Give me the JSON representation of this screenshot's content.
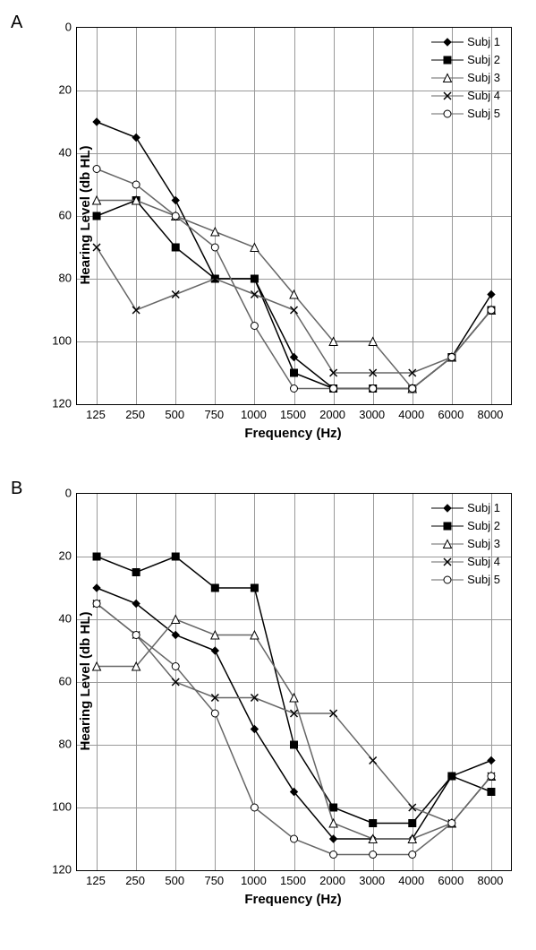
{
  "background_color": "#ffffff",
  "grid_color": "#999999",
  "axis_color": "#000000",
  "text_color": "#000000",
  "fonts": {
    "axis_label_fontsize": 15,
    "tick_fontsize": 13,
    "legend_fontsize": 13,
    "panel_label_fontsize": 20
  },
  "x": {
    "label": "Frequency (Hz)",
    "ticks": [
      "125",
      "250",
      "500",
      "750",
      "1000",
      "1500",
      "2000",
      "3000",
      "4000",
      "6000",
      "8000"
    ]
  },
  "y": {
    "label": "Hearing Level (db HL)",
    "min": 0,
    "max": 120,
    "step": 20,
    "inverted": true,
    "ticks": [
      0,
      20,
      40,
      60,
      80,
      100,
      120
    ]
  },
  "markers": {
    "subj1": {
      "shape": "diamond",
      "fill": "#000000",
      "stroke": "#000000",
      "size": 8,
      "line": "#000000"
    },
    "subj2": {
      "shape": "square",
      "fill": "#000000",
      "stroke": "#000000",
      "size": 8,
      "line": "#000000"
    },
    "subj3": {
      "shape": "triangle",
      "fill": "#ffffff",
      "stroke": "#000000",
      "size": 9,
      "line": "#666666"
    },
    "subj4": {
      "shape": "x",
      "fill": "none",
      "stroke": "#000000",
      "size": 8,
      "line": "#666666"
    },
    "subj5": {
      "shape": "circle",
      "fill": "#ffffff",
      "stroke": "#000000",
      "size": 8,
      "line": "#666666"
    }
  },
  "legend": {
    "items": [
      {
        "key": "subj1",
        "label": "Subj 1"
      },
      {
        "key": "subj2",
        "label": "Subj 2"
      },
      {
        "key": "subj3",
        "label": "Subj 3"
      },
      {
        "key": "subj4",
        "label": "Subj 4"
      },
      {
        "key": "subj5",
        "label": "Subj 5"
      }
    ]
  },
  "panels": [
    {
      "id": "A",
      "label": "A",
      "series": {
        "subj1": [
          30,
          35,
          55,
          80,
          80,
          105,
          115,
          115,
          115,
          105,
          85
        ],
        "subj2": [
          60,
          55,
          70,
          80,
          80,
          110,
          115,
          115,
          115,
          105,
          90
        ],
        "subj3": [
          55,
          55,
          60,
          65,
          70,
          85,
          100,
          100,
          115,
          105,
          90
        ],
        "subj4": [
          70,
          90,
          85,
          80,
          85,
          90,
          110,
          110,
          110,
          105,
          90
        ],
        "subj5": [
          45,
          50,
          60,
          70,
          95,
          115,
          115,
          115,
          115,
          105,
          90
        ]
      }
    },
    {
      "id": "B",
      "label": "B",
      "series": {
        "subj1": [
          30,
          35,
          45,
          50,
          75,
          95,
          110,
          110,
          110,
          90,
          85
        ],
        "subj2": [
          20,
          25,
          20,
          30,
          30,
          80,
          100,
          105,
          105,
          90,
          95
        ],
        "subj3": [
          55,
          55,
          40,
          45,
          45,
          65,
          105,
          110,
          110,
          105,
          90
        ],
        "subj4": [
          35,
          45,
          60,
          65,
          65,
          70,
          70,
          85,
          100,
          105,
          90
        ],
        "subj5": [
          35,
          45,
          55,
          70,
          100,
          110,
          115,
          115,
          115,
          105,
          90
        ]
      }
    }
  ]
}
